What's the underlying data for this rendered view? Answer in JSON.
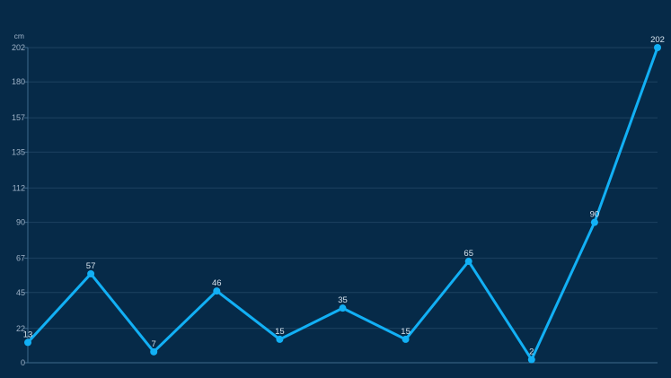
{
  "chart_data": {
    "type": "line",
    "unit": "cm",
    "x": [
      1,
      2,
      3,
      4,
      5,
      6,
      7,
      8,
      9,
      10,
      11
    ],
    "values": [
      13,
      57,
      7,
      46,
      15,
      35,
      15,
      65,
      2,
      90,
      202
    ],
    "y_ticks": [
      0,
      22,
      45,
      67,
      90,
      112,
      135,
      157,
      180,
      202
    ],
    "ylim": [
      0,
      202
    ],
    "grid": true,
    "legend": "none",
    "line_color": "#12b0f5",
    "grid_color": "#1d4260",
    "axis_color": "#3f6a8c"
  }
}
